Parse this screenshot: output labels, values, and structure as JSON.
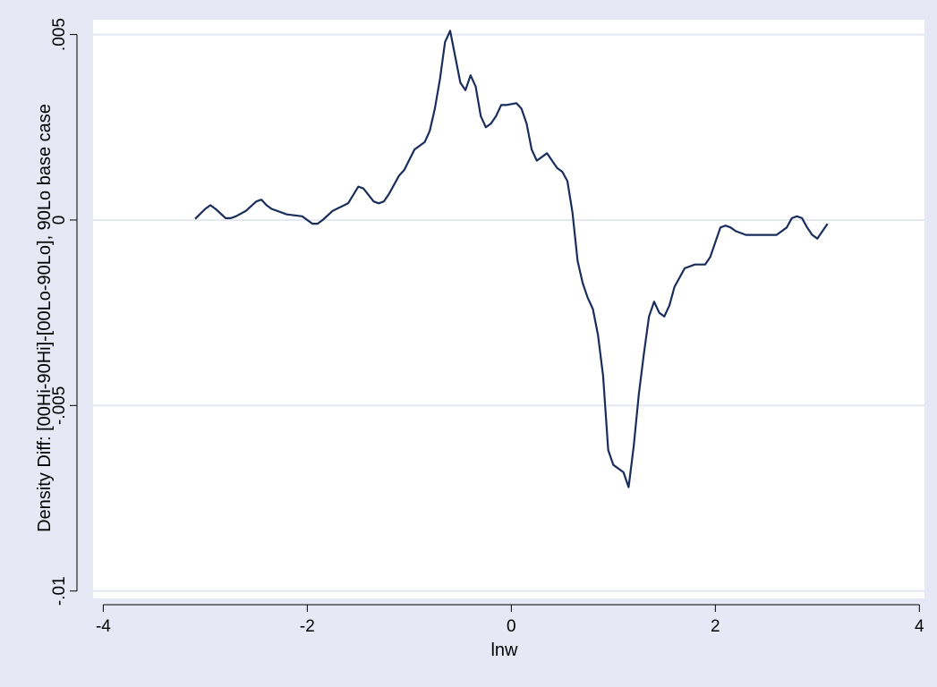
{
  "chart_data": {
    "type": "line",
    "title": "",
    "xlabel": "lnw",
    "ylabel": "Density Diff: [00Hi-90Hi]-[00Lo-90Lo], 90Lo base case",
    "xlim": [
      -4.1,
      4.05
    ],
    "ylim": [
      -0.0102,
      0.0054
    ],
    "grid": true,
    "legend": "none",
    "x_ticks": [
      {
        "value": -4,
        "label": "-4"
      },
      {
        "value": -2,
        "label": "-2"
      },
      {
        "value": 0,
        "label": "0"
      },
      {
        "value": 2,
        "label": "2"
      },
      {
        "value": 4,
        "label": "4"
      }
    ],
    "y_ticks": [
      {
        "value": -0.01,
        "label": "-.01"
      },
      {
        "value": -0.005,
        "label": "-.005"
      },
      {
        "value": 0,
        "label": "0"
      },
      {
        "value": 0.005,
        "label": ".005"
      }
    ],
    "colors": {
      "line": "#1a2e5c",
      "plot_background": "#ffffff",
      "outer_background": "#e6e9f5",
      "gridline": "#e4e8f0"
    },
    "series": [
      {
        "x": [
          -3.1,
          -3.0,
          -2.95,
          -2.9,
          -2.8,
          -2.75,
          -2.7,
          -2.6,
          -2.5,
          -2.45,
          -2.4,
          -2.35,
          -2.2,
          -2.05,
          -1.95,
          -1.9,
          -1.85,
          -1.75,
          -1.6,
          -1.5,
          -1.45,
          -1.35,
          -1.3,
          -1.25,
          -1.2,
          -1.1,
          -1.05,
          -0.95,
          -0.85,
          -0.8,
          -0.75,
          -0.7,
          -0.65,
          -0.6,
          -0.55,
          -0.5,
          -0.45,
          -0.4,
          -0.35,
          -0.3,
          -0.25,
          -0.2,
          -0.15,
          -0.1,
          -0.05,
          0.05,
          0.1,
          0.15,
          0.2,
          0.25,
          0.35,
          0.4,
          0.45,
          0.5,
          0.55,
          0.6,
          0.65,
          0.7,
          0.75,
          0.8,
          0.85,
          0.9,
          0.95,
          1.0,
          1.05,
          1.1,
          1.15,
          1.2,
          1.25,
          1.3,
          1.35,
          1.4,
          1.45,
          1.5,
          1.55,
          1.6,
          1.7,
          1.8,
          1.9,
          1.95,
          2.0,
          2.05,
          2.1,
          2.15,
          2.2,
          2.3,
          2.4,
          2.5,
          2.6,
          2.7,
          2.75,
          2.8,
          2.85,
          2.9,
          2.95,
          3.0,
          3.1
        ],
        "y": [
          3e-05,
          0.0003,
          0.0004,
          0.0003,
          5e-05,
          5e-05,
          0.0001,
          0.00025,
          0.0005,
          0.00055,
          0.0004,
          0.0003,
          0.00015,
          0.0001,
          -0.0001,
          -0.0001,
          0.0,
          0.00025,
          0.00045,
          0.0009,
          0.00085,
          0.0005,
          0.00045,
          0.0005,
          0.0007,
          0.0012,
          0.00135,
          0.0019,
          0.0021,
          0.0024,
          0.003,
          0.0038,
          0.0048,
          0.0051,
          0.0044,
          0.0037,
          0.0035,
          0.0039,
          0.0036,
          0.0028,
          0.0025,
          0.0026,
          0.0028,
          0.0031,
          0.0031,
          0.00315,
          0.003,
          0.0026,
          0.0019,
          0.0016,
          0.0018,
          0.0016,
          0.0014,
          0.0013,
          0.00105,
          0.0002,
          -0.0011,
          -0.0017,
          -0.0021,
          -0.0024,
          -0.0031,
          -0.0042,
          -0.0062,
          -0.0066,
          -0.0067,
          -0.0068,
          -0.0072,
          -0.0061,
          -0.0047,
          -0.0036,
          -0.0026,
          -0.0022,
          -0.0025,
          -0.0026,
          -0.0023,
          -0.0018,
          -0.0013,
          -0.0012,
          -0.0012,
          -0.001,
          -0.0006,
          -0.0002,
          -0.00015,
          -0.0002,
          -0.0003,
          -0.0004,
          -0.0004,
          -0.0004,
          -0.0004,
          -0.0002,
          5e-05,
          0.0001,
          5e-05,
          -0.0002,
          -0.0004,
          -0.0005,
          -0.0001
        ]
      }
    ]
  }
}
